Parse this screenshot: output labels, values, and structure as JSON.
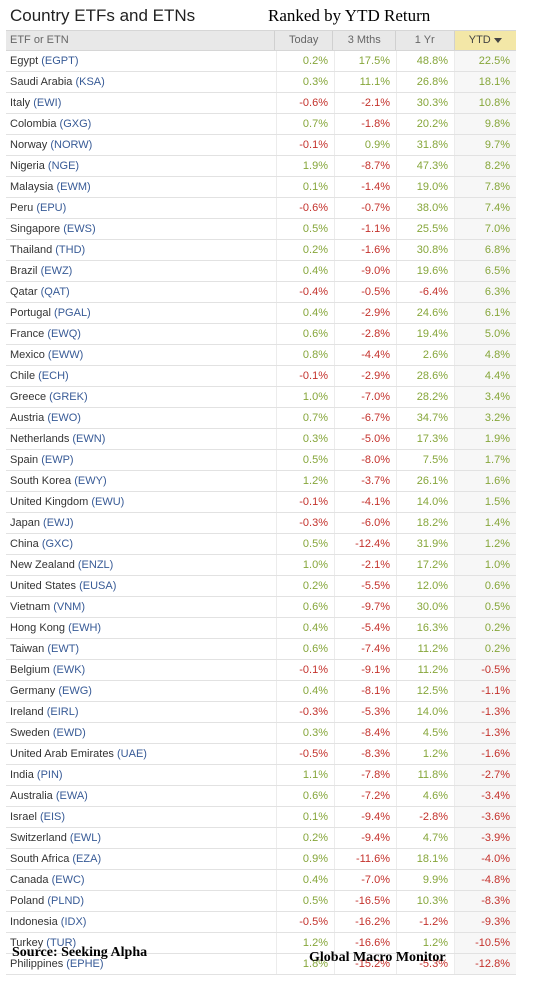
{
  "title": "Country ETFs and ETNs",
  "subtitle": "Ranked by YTD Return",
  "columns": {
    "name": "ETF or ETN",
    "today": "Today",
    "three_months": "3 Mths",
    "one_year": "1 Yr",
    "ytd": "YTD"
  },
  "rows": [
    {
      "country": "Egypt",
      "ticker": "(EGPT)",
      "today": "0.2%",
      "m3": "17.5%",
      "y1": "48.8%",
      "ytd": "22.5%"
    },
    {
      "country": "Saudi Arabia",
      "ticker": "(KSA)",
      "today": "0.3%",
      "m3": "11.1%",
      "y1": "26.8%",
      "ytd": "18.1%"
    },
    {
      "country": "Italy",
      "ticker": "(EWI)",
      "today": "-0.6%",
      "m3": "-2.1%",
      "y1": "30.3%",
      "ytd": "10.8%"
    },
    {
      "country": "Colombia",
      "ticker": "(GXG)",
      "today": "0.7%",
      "m3": "-1.8%",
      "y1": "20.2%",
      "ytd": "9.8%"
    },
    {
      "country": "Norway",
      "ticker": "(NORW)",
      "today": "-0.1%",
      "m3": "0.9%",
      "y1": "31.8%",
      "ytd": "9.7%"
    },
    {
      "country": "Nigeria",
      "ticker": "(NGE)",
      "today": "1.9%",
      "m3": "-8.7%",
      "y1": "47.3%",
      "ytd": "8.2%"
    },
    {
      "country": "Malaysia",
      "ticker": "(EWM)",
      "today": "0.1%",
      "m3": "-1.4%",
      "y1": "19.0%",
      "ytd": "7.8%"
    },
    {
      "country": "Peru",
      "ticker": "(EPU)",
      "today": "-0.6%",
      "m3": "-0.7%",
      "y1": "38.0%",
      "ytd": "7.4%"
    },
    {
      "country": "Singapore",
      "ticker": "(EWS)",
      "today": "0.5%",
      "m3": "-1.1%",
      "y1": "25.5%",
      "ytd": "7.0%"
    },
    {
      "country": "Thailand",
      "ticker": "(THD)",
      "today": "0.2%",
      "m3": "-1.6%",
      "y1": "30.8%",
      "ytd": "6.8%"
    },
    {
      "country": "Brazil",
      "ticker": "(EWZ)",
      "today": "0.4%",
      "m3": "-9.0%",
      "y1": "19.6%",
      "ytd": "6.5%"
    },
    {
      "country": "Qatar",
      "ticker": "(QAT)",
      "today": "-0.4%",
      "m3": "-0.5%",
      "y1": "-6.4%",
      "ytd": "6.3%"
    },
    {
      "country": "Portugal",
      "ticker": "(PGAL)",
      "today": "0.4%",
      "m3": "-2.9%",
      "y1": "24.6%",
      "ytd": "6.1%"
    },
    {
      "country": "France",
      "ticker": "(EWQ)",
      "today": "0.6%",
      "m3": "-2.8%",
      "y1": "19.4%",
      "ytd": "5.0%"
    },
    {
      "country": "Mexico",
      "ticker": "(EWW)",
      "today": "0.8%",
      "m3": "-4.4%",
      "y1": "2.6%",
      "ytd": "4.8%"
    },
    {
      "country": "Chile",
      "ticker": "(ECH)",
      "today": "-0.1%",
      "m3": "-2.9%",
      "y1": "28.6%",
      "ytd": "4.4%"
    },
    {
      "country": "Greece",
      "ticker": "(GREK)",
      "today": "1.0%",
      "m3": "-7.0%",
      "y1": "28.2%",
      "ytd": "3.4%"
    },
    {
      "country": "Austria",
      "ticker": "(EWO)",
      "today": "0.7%",
      "m3": "-6.7%",
      "y1": "34.7%",
      "ytd": "3.2%"
    },
    {
      "country": "Netherlands",
      "ticker": "(EWN)",
      "today": "0.3%",
      "m3": "-5.0%",
      "y1": "17.3%",
      "ytd": "1.9%"
    },
    {
      "country": "Spain",
      "ticker": "(EWP)",
      "today": "0.5%",
      "m3": "-8.0%",
      "y1": "7.5%",
      "ytd": "1.7%"
    },
    {
      "country": "South Korea",
      "ticker": "(EWY)",
      "today": "1.2%",
      "m3": "-3.7%",
      "y1": "26.1%",
      "ytd": "1.6%"
    },
    {
      "country": "United Kingdom",
      "ticker": "(EWU)",
      "today": "-0.1%",
      "m3": "-4.1%",
      "y1": "14.0%",
      "ytd": "1.5%"
    },
    {
      "country": "Japan",
      "ticker": "(EWJ)",
      "today": "-0.3%",
      "m3": "-6.0%",
      "y1": "18.2%",
      "ytd": "1.4%"
    },
    {
      "country": "China",
      "ticker": "(GXC)",
      "today": "0.5%",
      "m3": "-12.4%",
      "y1": "31.9%",
      "ytd": "1.2%"
    },
    {
      "country": "New Zealand",
      "ticker": "(ENZL)",
      "today": "1.0%",
      "m3": "-2.1%",
      "y1": "17.2%",
      "ytd": "1.0%"
    },
    {
      "country": "United States",
      "ticker": "(EUSA)",
      "today": "0.2%",
      "m3": "-5.5%",
      "y1": "12.0%",
      "ytd": "0.6%"
    },
    {
      "country": "Vietnam",
      "ticker": "(VNM)",
      "today": "0.6%",
      "m3": "-9.7%",
      "y1": "30.0%",
      "ytd": "0.5%"
    },
    {
      "country": "Hong Kong",
      "ticker": "(EWH)",
      "today": "0.4%",
      "m3": "-5.4%",
      "y1": "16.3%",
      "ytd": "0.2%"
    },
    {
      "country": "Taiwan",
      "ticker": "(EWT)",
      "today": "0.6%",
      "m3": "-7.4%",
      "y1": "11.2%",
      "ytd": "0.2%"
    },
    {
      "country": "Belgium",
      "ticker": "(EWK)",
      "today": "-0.1%",
      "m3": "-9.1%",
      "y1": "11.2%",
      "ytd": "-0.5%"
    },
    {
      "country": "Germany",
      "ticker": "(EWG)",
      "today": "0.4%",
      "m3": "-8.1%",
      "y1": "12.5%",
      "ytd": "-1.1%"
    },
    {
      "country": "Ireland",
      "ticker": "(EIRL)",
      "today": "-0.3%",
      "m3": "-5.3%",
      "y1": "14.0%",
      "ytd": "-1.3%"
    },
    {
      "country": "Sweden",
      "ticker": "(EWD)",
      "today": "0.3%",
      "m3": "-8.4%",
      "y1": "4.5%",
      "ytd": "-1.3%"
    },
    {
      "country": "United Arab Emirates",
      "ticker": "(UAE)",
      "today": "-0.5%",
      "m3": "-8.3%",
      "y1": "1.2%",
      "ytd": "-1.6%"
    },
    {
      "country": "India",
      "ticker": "(PIN)",
      "today": "1.1%",
      "m3": "-7.8%",
      "y1": "11.8%",
      "ytd": "-2.7%"
    },
    {
      "country": "Australia",
      "ticker": "(EWA)",
      "today": "0.6%",
      "m3": "-7.2%",
      "y1": "4.6%",
      "ytd": "-3.4%"
    },
    {
      "country": "Israel",
      "ticker": "(EIS)",
      "today": "0.1%",
      "m3": "-9.4%",
      "y1": "-2.8%",
      "ytd": "-3.6%"
    },
    {
      "country": "Switzerland",
      "ticker": "(EWL)",
      "today": "0.2%",
      "m3": "-9.4%",
      "y1": "4.7%",
      "ytd": "-3.9%"
    },
    {
      "country": "South Africa",
      "ticker": "(EZA)",
      "today": "0.9%",
      "m3": "-11.6%",
      "y1": "18.1%",
      "ytd": "-4.0%"
    },
    {
      "country": "Canada",
      "ticker": "(EWC)",
      "today": "0.4%",
      "m3": "-7.0%",
      "y1": "9.9%",
      "ytd": "-4.8%"
    },
    {
      "country": "Poland",
      "ticker": "(PLND)",
      "today": "0.5%",
      "m3": "-16.5%",
      "y1": "10.3%",
      "ytd": "-8.3%"
    },
    {
      "country": "Indonesia",
      "ticker": "(IDX)",
      "today": "-0.5%",
      "m3": "-16.2%",
      "y1": "-1.2%",
      "ytd": "-9.3%"
    },
    {
      "country": "Turkey",
      "ticker": "(TUR)",
      "today": "1.2%",
      "m3": "-16.6%",
      "y1": "1.2%",
      "ytd": "-10.5%"
    },
    {
      "country": "Philippines",
      "ticker": "(EPHE)",
      "today": "1.8%",
      "m3": "-15.2%",
      "y1": "-5.3%",
      "ytd": "-12.8%"
    }
  ],
  "source": "Source:  Seeking Alpha",
  "brand": "Global Macro Monitor",
  "colors": {
    "positive": "#86a63a",
    "negative": "#c4322c",
    "ticker": "#375a96",
    "sorted_header": "#f3e7a7"
  },
  "sort_indicator_icon": "caret-down-icon"
}
